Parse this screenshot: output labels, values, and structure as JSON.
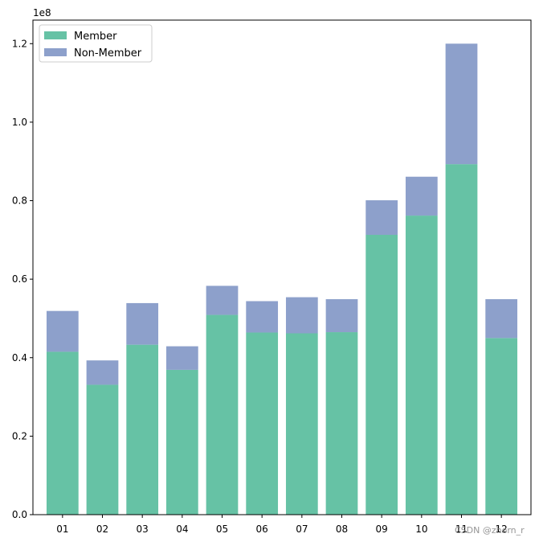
{
  "chart_data": {
    "type": "bar",
    "stacked": true,
    "categories": [
      "01",
      "02",
      "03",
      "04",
      "05",
      "06",
      "07",
      "08",
      "09",
      "10",
      "11",
      "12"
    ],
    "series": [
      {
        "name": "Member",
        "color": "#66c2a5",
        "values": [
          41500000,
          33100000,
          43300000,
          36900000,
          50900000,
          46400000,
          46200000,
          46500000,
          71300000,
          76200000,
          89300000,
          45000000
        ]
      },
      {
        "name": "Non-Member",
        "color": "#8da0cb",
        "values": [
          10400000,
          6200000,
          10600000,
          6000000,
          7400000,
          8000000,
          9200000,
          8400000,
          8800000,
          9900000,
          30700000,
          9900000
        ]
      }
    ],
    "ylim": [
      0,
      126000000
    ],
    "yticks": [
      0,
      20000000,
      40000000,
      60000000,
      80000000,
      100000000,
      120000000
    ],
    "ytick_labels": [
      "0.0",
      "0.2",
      "0.4",
      "0.6",
      "0.8",
      "1.0",
      "1.2"
    ],
    "y_offset_label": "1e8",
    "legend_position": "top-left",
    "grid": false,
    "xlabel": "",
    "ylabel": "",
    "title": ""
  },
  "watermark": "CSDN @zhorn_r"
}
